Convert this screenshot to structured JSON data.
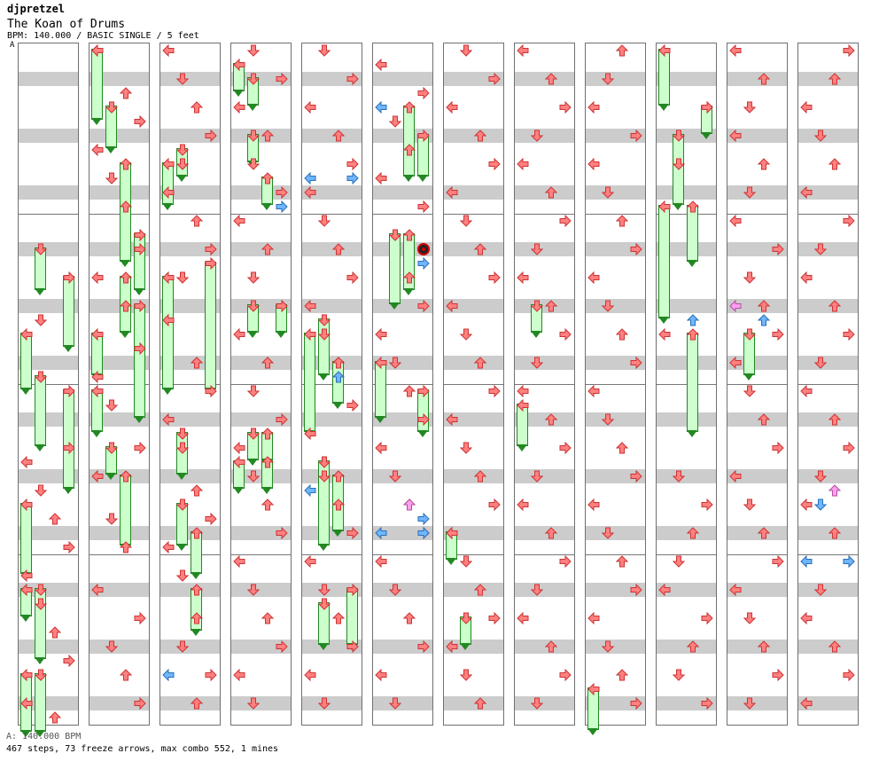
{
  "header": {
    "author": "djpretzel",
    "song_title": "The Koan of Drums",
    "meta": "BPM: 140.000 / BASIC SINGLE / 5 feet"
  },
  "section_marker": "A",
  "footer": {
    "bpm_line": "A: 140.000 BPM",
    "stats_line": "467 steps, 73 freeze arrows, max combo 552, 1 mines"
  },
  "colors": {
    "tap": "#ff8080",
    "tap_stroke": "#cc3333",
    "quarter": "#6fb6ff",
    "eighth": "#ff9ff0",
    "freeze_fill": "#ccffcc",
    "freeze_border": "#228822"
  },
  "chart_data": {
    "type": "step-chart",
    "steps": 467,
    "freeze_arrows": 73,
    "max_combo": 552,
    "mines": 1,
    "bpm": 140.0,
    "difficulty": "BASIC SINGLE",
    "feet": 5,
    "columns": 12,
    "measures_per_column": 4,
    "lanes": [
      "left",
      "down",
      "up",
      "right"
    ],
    "rows_per_column": 48,
    "notes": [
      [
        0,
        19,
        1
      ],
      [
        0,
        28,
        3
      ],
      [
        0,
        29,
        0
      ],
      [
        0,
        31,
        1
      ],
      [
        0,
        33,
        2
      ],
      [
        0,
        35,
        3
      ],
      [
        0,
        37,
        0
      ],
      [
        0,
        39,
        1
      ],
      [
        0,
        41,
        2
      ],
      [
        0,
        43,
        3
      ],
      [
        0,
        46,
        0
      ],
      [
        0,
        47,
        2
      ],
      [
        1,
        0,
        0
      ],
      [
        1,
        3,
        2
      ],
      [
        1,
        5,
        3
      ],
      [
        1,
        7,
        0
      ],
      [
        1,
        9,
        1
      ],
      [
        1,
        11,
        2
      ],
      [
        1,
        14,
        3
      ],
      [
        1,
        16,
        0
      ],
      [
        1,
        18,
        2
      ],
      [
        1,
        21,
        3
      ],
      [
        1,
        23,
        0
      ],
      [
        1,
        25,
        1
      ],
      [
        1,
        28,
        3
      ],
      [
        1,
        30,
        0
      ],
      [
        1,
        33,
        1
      ],
      [
        1,
        35,
        2
      ],
      [
        1,
        38,
        0
      ],
      [
        1,
        40,
        3
      ],
      [
        1,
        42,
        1
      ],
      [
        1,
        44,
        2
      ],
      [
        1,
        46,
        3
      ],
      [
        2,
        0,
        0
      ],
      [
        2,
        2,
        1
      ],
      [
        2,
        4,
        2
      ],
      [
        2,
        6,
        3
      ],
      [
        2,
        8,
        1
      ],
      [
        2,
        10,
        0
      ],
      [
        2,
        12,
        2
      ],
      [
        2,
        14,
        3
      ],
      [
        2,
        16,
        1
      ],
      [
        2,
        19,
        0
      ],
      [
        2,
        22,
        2
      ],
      [
        2,
        24,
        3
      ],
      [
        2,
        26,
        0
      ],
      [
        2,
        28,
        1
      ],
      [
        2,
        31,
        2
      ],
      [
        2,
        33,
        3
      ],
      [
        2,
        35,
        0
      ],
      [
        2,
        37,
        1
      ],
      [
        2,
        40,
        2
      ],
      [
        2,
        42,
        1
      ],
      [
        2,
        44,
        3
      ],
      [
        2,
        46,
        2
      ],
      [
        3,
        0,
        1
      ],
      [
        3,
        2,
        3
      ],
      [
        3,
        4,
        0
      ],
      [
        3,
        6,
        2
      ],
      [
        3,
        8,
        1
      ],
      [
        3,
        10,
        3
      ],
      [
        3,
        12,
        0
      ],
      [
        3,
        14,
        2
      ],
      [
        3,
        16,
        1
      ],
      [
        3,
        18,
        3
      ],
      [
        3,
        20,
        0
      ],
      [
        3,
        22,
        2
      ],
      [
        3,
        24,
        1
      ],
      [
        3,
        26,
        3
      ],
      [
        3,
        28,
        0
      ],
      [
        3,
        30,
        1
      ],
      [
        3,
        32,
        2
      ],
      [
        3,
        34,
        3
      ],
      [
        3,
        36,
        0
      ],
      [
        3,
        38,
        1
      ],
      [
        3,
        40,
        2
      ],
      [
        3,
        42,
        3
      ],
      [
        3,
        44,
        0
      ],
      [
        3,
        46,
        1
      ],
      [
        4,
        0,
        1
      ],
      [
        4,
        2,
        3
      ],
      [
        4,
        4,
        0
      ],
      [
        4,
        6,
        2
      ],
      [
        4,
        8,
        3
      ],
      [
        4,
        10,
        0
      ],
      [
        4,
        12,
        1
      ],
      [
        4,
        14,
        2
      ],
      [
        4,
        16,
        3
      ],
      [
        4,
        18,
        0
      ],
      [
        4,
        20,
        1
      ],
      [
        4,
        22,
        2
      ],
      [
        4,
        25,
        3
      ],
      [
        4,
        27,
        0
      ],
      [
        4,
        30,
        1
      ],
      [
        4,
        32,
        2
      ],
      [
        4,
        34,
        3
      ],
      [
        4,
        36,
        0
      ],
      [
        4,
        38,
        1
      ],
      [
        4,
        40,
        2
      ],
      [
        4,
        42,
        3
      ],
      [
        4,
        44,
        0
      ],
      [
        4,
        46,
        1
      ],
      [
        5,
        1,
        0
      ],
      [
        5,
        3,
        3
      ],
      [
        5,
        5,
        1
      ],
      [
        5,
        7,
        2
      ],
      [
        5,
        9,
        0
      ],
      [
        5,
        11,
        3
      ],
      [
        5,
        13,
        1
      ],
      [
        5,
        16,
        2
      ],
      [
        5,
        18,
        3
      ],
      [
        5,
        20,
        0
      ],
      [
        5,
        22,
        1
      ],
      [
        5,
        24,
        2
      ],
      [
        5,
        26,
        3
      ],
      [
        5,
        28,
        0
      ],
      [
        5,
        30,
        1
      ],
      [
        5,
        32,
        2
      ],
      [
        5,
        34,
        3
      ],
      [
        5,
        36,
        0
      ],
      [
        5,
        38,
        1
      ],
      [
        5,
        40,
        2
      ],
      [
        5,
        42,
        3
      ],
      [
        5,
        44,
        0
      ],
      [
        5,
        46,
        1
      ],
      [
        6,
        0,
        1
      ],
      [
        6,
        2,
        3
      ],
      [
        6,
        4,
        0
      ],
      [
        6,
        6,
        2
      ],
      [
        6,
        8,
        3
      ],
      [
        6,
        10,
        0
      ],
      [
        6,
        12,
        1
      ],
      [
        6,
        14,
        2
      ],
      [
        6,
        16,
        3
      ],
      [
        6,
        18,
        0
      ],
      [
        6,
        20,
        1
      ],
      [
        6,
        22,
        2
      ],
      [
        6,
        24,
        3
      ],
      [
        6,
        26,
        0
      ],
      [
        6,
        28,
        1
      ],
      [
        6,
        30,
        2
      ],
      [
        6,
        32,
        3
      ],
      [
        6,
        34,
        0
      ],
      [
        6,
        36,
        1
      ],
      [
        6,
        38,
        2
      ],
      [
        6,
        40,
        3
      ],
      [
        6,
        42,
        0
      ],
      [
        6,
        44,
        1
      ],
      [
        6,
        46,
        2
      ],
      [
        7,
        0,
        0
      ],
      [
        7,
        2,
        2
      ],
      [
        7,
        4,
        3
      ],
      [
        7,
        6,
        1
      ],
      [
        7,
        8,
        0
      ],
      [
        7,
        10,
        2
      ],
      [
        7,
        12,
        3
      ],
      [
        7,
        14,
        1
      ],
      [
        7,
        16,
        0
      ],
      [
        7,
        18,
        2
      ],
      [
        7,
        20,
        3
      ],
      [
        7,
        22,
        1
      ],
      [
        7,
        24,
        0
      ],
      [
        7,
        26,
        2
      ],
      [
        7,
        28,
        3
      ],
      [
        7,
        30,
        1
      ],
      [
        7,
        32,
        0
      ],
      [
        7,
        34,
        2
      ],
      [
        7,
        36,
        3
      ],
      [
        7,
        38,
        1
      ],
      [
        7,
        40,
        0
      ],
      [
        7,
        42,
        2
      ],
      [
        7,
        44,
        3
      ],
      [
        7,
        46,
        1
      ],
      [
        8,
        0,
        2
      ],
      [
        8,
        2,
        1
      ],
      [
        8,
        4,
        0
      ],
      [
        8,
        6,
        3
      ],
      [
        8,
        8,
        0
      ],
      [
        8,
        10,
        1
      ],
      [
        8,
        12,
        2
      ],
      [
        8,
        14,
        3
      ],
      [
        8,
        16,
        0
      ],
      [
        8,
        18,
        1
      ],
      [
        8,
        20,
        2
      ],
      [
        8,
        22,
        3
      ],
      [
        8,
        24,
        0
      ],
      [
        8,
        26,
        1
      ],
      [
        8,
        28,
        2
      ],
      [
        8,
        30,
        3
      ],
      [
        8,
        32,
        0
      ],
      [
        8,
        34,
        1
      ],
      [
        8,
        36,
        2
      ],
      [
        8,
        38,
        3
      ],
      [
        8,
        40,
        0
      ],
      [
        8,
        42,
        1
      ],
      [
        8,
        44,
        2
      ],
      [
        8,
        46,
        3
      ],
      [
        9,
        4,
        3
      ],
      [
        9,
        8,
        1
      ],
      [
        9,
        20,
        0
      ],
      [
        9,
        30,
        1
      ],
      [
        9,
        32,
        3
      ],
      [
        9,
        34,
        2
      ],
      [
        9,
        36,
        1
      ],
      [
        9,
        38,
        0
      ],
      [
        9,
        40,
        3
      ],
      [
        9,
        42,
        2
      ],
      [
        9,
        44,
        1
      ],
      [
        9,
        46,
        3
      ],
      [
        10,
        0,
        0
      ],
      [
        10,
        2,
        2
      ],
      [
        10,
        4,
        1
      ],
      [
        10,
        6,
        0
      ],
      [
        10,
        8,
        2
      ],
      [
        10,
        10,
        1
      ],
      [
        10,
        12,
        0
      ],
      [
        10,
        14,
        3
      ],
      [
        10,
        16,
        1
      ],
      [
        10,
        18,
        2
      ],
      [
        10,
        20,
        3
      ],
      [
        10,
        22,
        0
      ],
      [
        10,
        24,
        1
      ],
      [
        10,
        26,
        2
      ],
      [
        10,
        28,
        3
      ],
      [
        10,
        30,
        0
      ],
      [
        10,
        32,
        1
      ],
      [
        10,
        34,
        2
      ],
      [
        10,
        36,
        3
      ],
      [
        10,
        38,
        0
      ],
      [
        10,
        40,
        1
      ],
      [
        10,
        42,
        2
      ],
      [
        10,
        44,
        3
      ],
      [
        10,
        46,
        1
      ],
      [
        11,
        0,
        3
      ],
      [
        11,
        2,
        2
      ],
      [
        11,
        4,
        0
      ],
      [
        11,
        6,
        1
      ],
      [
        11,
        8,
        2
      ],
      [
        11,
        10,
        0
      ],
      [
        11,
        12,
        3
      ],
      [
        11,
        14,
        1
      ],
      [
        11,
        16,
        0
      ],
      [
        11,
        18,
        2
      ],
      [
        11,
        20,
        3
      ],
      [
        11,
        22,
        1
      ],
      [
        11,
        24,
        0
      ],
      [
        11,
        26,
        2
      ],
      [
        11,
        28,
        3
      ],
      [
        11,
        30,
        1
      ],
      [
        11,
        32,
        0
      ],
      [
        11,
        34,
        2
      ],
      [
        11,
        36,
        3
      ],
      [
        11,
        38,
        1
      ],
      [
        11,
        40,
        0
      ],
      [
        11,
        42,
        2
      ],
      [
        11,
        44,
        3
      ],
      [
        11,
        46,
        0
      ]
    ],
    "freezes": [
      [
        0,
        14,
        17,
        1
      ],
      [
        0,
        16,
        21,
        3
      ],
      [
        0,
        20,
        24,
        0
      ],
      [
        0,
        23,
        28,
        1
      ],
      [
        0,
        24,
        31,
        3
      ],
      [
        0,
        32,
        37,
        0
      ],
      [
        0,
        38,
        40,
        0
      ],
      [
        0,
        38,
        43,
        1
      ],
      [
        0,
        44,
        49,
        0
      ],
      [
        0,
        44,
        49,
        1
      ],
      [
        1,
        0,
        5,
        0
      ],
      [
        1,
        4,
        7,
        1
      ],
      [
        1,
        8,
        15,
        2
      ],
      [
        1,
        13,
        17,
        3
      ],
      [
        1,
        16,
        20,
        2
      ],
      [
        1,
        18,
        26,
        3
      ],
      [
        1,
        20,
        23,
        0
      ],
      [
        1,
        24,
        27,
        0
      ],
      [
        1,
        28,
        30,
        1
      ],
      [
        1,
        30,
        35,
        2
      ],
      [
        2,
        8,
        11,
        0
      ],
      [
        2,
        7,
        9,
        1
      ],
      [
        2,
        16,
        24,
        0
      ],
      [
        2,
        15,
        24,
        3
      ],
      [
        2,
        27,
        30,
        1
      ],
      [
        2,
        32,
        35,
        1
      ],
      [
        2,
        34,
        37,
        2
      ],
      [
        2,
        38,
        41,
        2
      ],
      [
        3,
        1,
        3,
        0
      ],
      [
        3,
        2,
        4,
        1
      ],
      [
        3,
        6,
        8,
        1
      ],
      [
        3,
        9,
        11,
        2
      ],
      [
        3,
        18,
        20,
        1
      ],
      [
        3,
        18,
        20,
        3
      ],
      [
        3,
        27,
        29,
        1
      ],
      [
        3,
        27,
        29,
        2
      ],
      [
        3,
        29,
        31,
        0
      ],
      [
        3,
        29,
        31,
        2
      ],
      [
        4,
        19,
        23,
        1
      ],
      [
        4,
        20,
        27,
        0
      ],
      [
        4,
        22,
        25,
        2
      ],
      [
        4,
        29,
        35,
        1
      ],
      [
        4,
        30,
        34,
        2
      ],
      [
        4,
        39,
        42,
        1
      ],
      [
        4,
        38,
        42,
        3
      ],
      [
        5,
        4,
        9,
        2
      ],
      [
        5,
        6,
        9,
        3
      ],
      [
        5,
        13,
        18,
        1
      ],
      [
        5,
        13,
        17,
        2
      ],
      [
        5,
        22,
        26,
        0
      ],
      [
        5,
        24,
        27,
        3
      ],
      [
        6,
        34,
        36,
        0
      ],
      [
        6,
        40,
        42,
        1
      ],
      [
        7,
        18,
        20,
        1
      ],
      [
        7,
        25,
        28,
        0
      ],
      [
        8,
        45,
        48,
        0
      ],
      [
        9,
        0,
        4,
        0
      ],
      [
        9,
        4,
        6,
        3
      ],
      [
        9,
        6,
        11,
        1
      ],
      [
        9,
        11,
        19,
        0
      ],
      [
        9,
        11,
        15,
        2
      ],
      [
        9,
        20,
        27,
        2
      ],
      [
        10,
        20,
        23,
        1
      ]
    ],
    "quarter_marks": [
      [
        5,
        4,
        0
      ],
      [
        5,
        15,
        3
      ],
      [
        4,
        9,
        0
      ],
      [
        4,
        9,
        3
      ],
      [
        3,
        11,
        3
      ],
      [
        4,
        23,
        2
      ],
      [
        4,
        31,
        0
      ],
      [
        5,
        33,
        3
      ],
      [
        5,
        34,
        0
      ],
      [
        5,
        34,
        3
      ],
      [
        9,
        19,
        2
      ],
      [
        10,
        19,
        2
      ],
      [
        11,
        32,
        1
      ],
      [
        11,
        36,
        0
      ],
      [
        11,
        36,
        3
      ],
      [
        2,
        44,
        0
      ]
    ],
    "eighth_marks": [
      [
        10,
        18,
        0
      ],
      [
        5,
        32,
        2
      ],
      [
        11,
        31,
        2
      ]
    ],
    "mine_marks": [
      [
        5,
        14,
        3
      ]
    ]
  }
}
